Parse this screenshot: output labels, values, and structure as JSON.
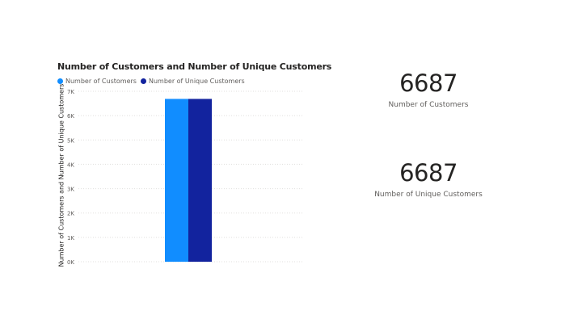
{
  "chart_data": {
    "type": "bar",
    "title": "Number of Customers and Number of Unique Customers",
    "ylabel": "Number of Customers and Number of Unique Customers",
    "xlabel": "",
    "categories": [
      ""
    ],
    "series": [
      {
        "name": "Number of Customers",
        "values": [
          6687
        ],
        "color": "#118dff"
      },
      {
        "name": "Number of Unique Customers",
        "values": [
          6687
        ],
        "color": "#12239e"
      }
    ],
    "ylim": [
      0,
      7000
    ],
    "yticks": [
      0,
      1000,
      2000,
      3000,
      4000,
      5000,
      6000,
      7000
    ],
    "ytick_labels": [
      "0K",
      "1K",
      "2K",
      "3K",
      "4K",
      "5K",
      "6K",
      "7K"
    ],
    "grid": true,
    "legend_position": "top-left"
  },
  "cards": [
    {
      "value": "6687",
      "label": "Number of Customers"
    },
    {
      "value": "6687",
      "label": "Number of Unique Customers"
    }
  ]
}
